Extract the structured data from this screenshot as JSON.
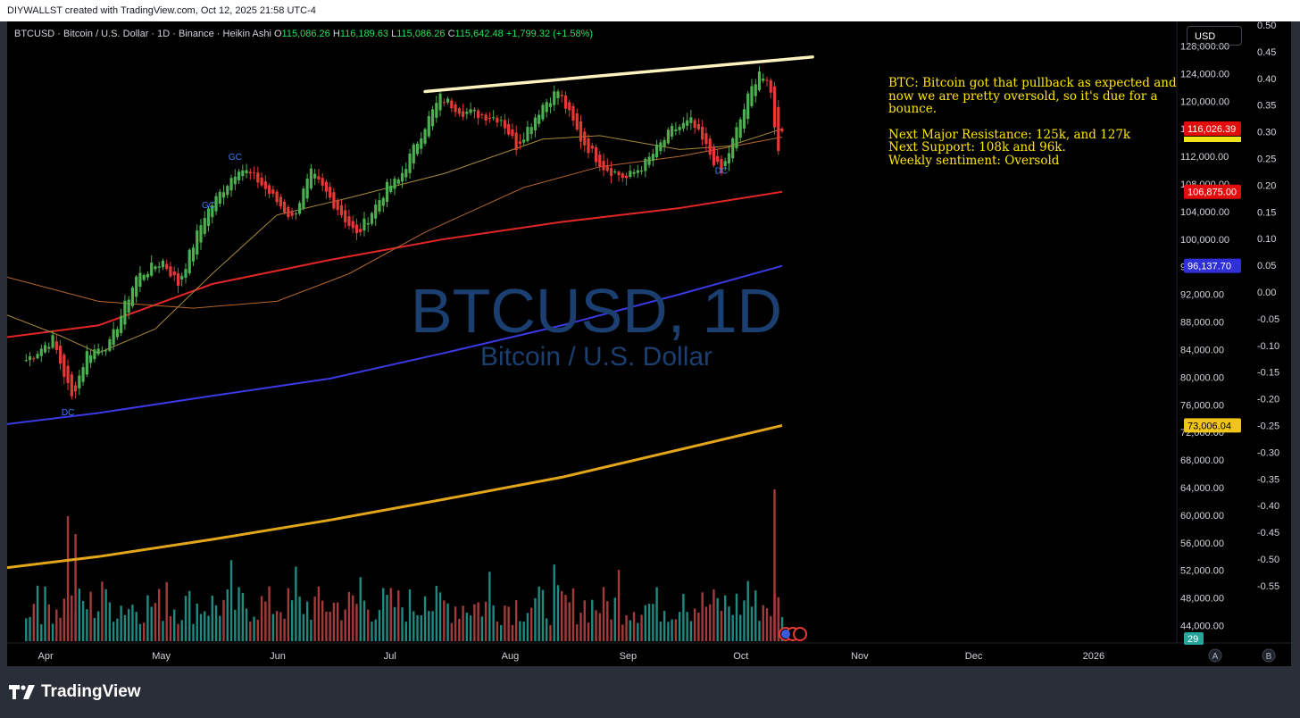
{
  "header": {
    "text": "DIYWALLST created with TradingView.com, Oct 12, 2025 21:58 UTC-4"
  },
  "legend": {
    "symbol": "BTCUSD · Bitcoin / U.S. Dollar · 1D · Binance · Heikin Ashi",
    "o_label": "O",
    "o_value": "115,086.26",
    "h_label": "H",
    "h_value": "116,189.63",
    "l_label": "L",
    "l_value": "115,086.26",
    "c_label": "C",
    "c_value": "115,642.48",
    "change": "+1,799.32 (+1.58%)"
  },
  "currency": "USD",
  "watermark": {
    "title": "BTCUSD, 1D",
    "subtitle": "Bitcoin / U.S. Dollar"
  },
  "note": {
    "para1": "BTC: Bitcoin got that pullback as expected and now we are pretty oversold, so it's due for a bounce.",
    "line1": "Next Major Resistance: 125k, and 127k",
    "line2": "Next Support: 108k and 96k.",
    "line3": "Weekly sentiment: Oversold"
  },
  "footer": {
    "brand": "TradingView"
  },
  "colors": {
    "up": "#4caf50",
    "down": "#e53935",
    "ma200": "#e12626",
    "ma_blue": "#3a3ae6",
    "ma_gold": "#e3a61a",
    "ma_tan": "#a98a3c",
    "ma_orange": "#b4652c",
    "vol_up": "#1f8a80",
    "vol_down": "#a33b3b",
    "resistance": "#fff4c0",
    "label_blue": "#3f7df2",
    "background": "#000000"
  },
  "chart_data": {
    "type": "candlestick",
    "chart_style": "Heikin Ashi",
    "x_labels": [
      "Apr",
      "May",
      "Jun",
      "Jul",
      "Aug",
      "Sep",
      "Oct",
      "Nov",
      "Dec",
      "2026"
    ],
    "y_ticks": [
      "128,000.00",
      "124,000.00",
      "120,000.00",
      "116,000.00",
      "112,000.00",
      "108,000.00",
      "104,000.00",
      "100,000.00",
      "96,000.00",
      "92,000.00",
      "88,000.00",
      "84,000.00",
      "80,000.00",
      "76,000.00",
      "72,000.00",
      "68,000.00",
      "64,000.00",
      "60,000.00",
      "56,000.00",
      "52,000.00",
      "48,000.00",
      "44,000.00"
    ],
    "y_range": [
      42000,
      130000
    ],
    "y2_ticks": [
      "0.50",
      "0.45",
      "0.40",
      "0.35",
      "0.30",
      "0.25",
      "0.20",
      "0.15",
      "0.10",
      "0.05",
      "0.00",
      "-0.05",
      "-0.10",
      "-0.15",
      "-0.20",
      "-0.25",
      "-0.30",
      "-0.35",
      "-0.40",
      "-0.45",
      "-0.50",
      "-0.55"
    ],
    "price_labels": [
      {
        "text": "116,026.39",
        "value": 116026.39,
        "color": "#e30b0b"
      },
      {
        "text": "106,875.00",
        "value": 106875,
        "color": "#e30b0b"
      },
      {
        "text": "96,137.70",
        "value": 96137.7,
        "color": "#3030d8"
      },
      {
        "text": "73,006.04",
        "value": 73006.04,
        "color": "#f0c419"
      }
    ],
    "extra_label": "29",
    "axis_buttons": [
      "A",
      "B"
    ],
    "signals": [
      {
        "text": "DC",
        "date": "2025-04-07",
        "value": 74500
      },
      {
        "text": "GC",
        "date": "2025-05-21",
        "value": 111500
      },
      {
        "text": "GC",
        "date": "2025-05-14",
        "value": 104500
      },
      {
        "text": "DC",
        "date": "2025-09-26",
        "value": 109500
      }
    ],
    "resistance_line": {
      "from": [
        "2025-07-10",
        121400
      ],
      "to": [
        "2025-10-20",
        126400
      ]
    },
    "anchors": [
      [
        "2025-03-27",
        82500
      ],
      [
        "2025-04-03",
        85500
      ],
      [
        "2025-04-08",
        77000
      ],
      [
        "2025-04-12",
        83500
      ],
      [
        "2025-04-18",
        84800
      ],
      [
        "2025-04-25",
        94500
      ],
      [
        "2025-05-02",
        96800
      ],
      [
        "2025-05-06",
        93500
      ],
      [
        "2025-05-13",
        103500
      ],
      [
        "2025-05-22",
        110500
      ],
      [
        "2025-05-27",
        108500
      ],
      [
        "2025-06-05",
        103000
      ],
      [
        "2025-06-10",
        109500
      ],
      [
        "2025-06-17",
        104500
      ],
      [
        "2025-06-22",
        100500
      ],
      [
        "2025-06-30",
        107500
      ],
      [
        "2025-07-03",
        108500
      ],
      [
        "2025-07-10",
        116500
      ],
      [
        "2025-07-14",
        120500
      ],
      [
        "2025-07-20",
        118500
      ],
      [
        "2025-07-30",
        117500
      ],
      [
        "2025-08-03",
        113500
      ],
      [
        "2025-08-10",
        119500
      ],
      [
        "2025-08-14",
        121500
      ],
      [
        "2025-08-20",
        114500
      ],
      [
        "2025-08-26",
        110500
      ],
      [
        "2025-09-01",
        108800
      ],
      [
        "2025-09-06",
        111000
      ],
      [
        "2025-09-13",
        115800
      ],
      [
        "2025-09-18",
        117000
      ],
      [
        "2025-09-26",
        109500
      ],
      [
        "2025-10-03",
        120500
      ],
      [
        "2025-10-06",
        124500
      ],
      [
        "2025-10-09",
        121000
      ],
      [
        "2025-10-11",
        112500
      ],
      [
        "2025-10-12",
        115642
      ]
    ],
    "moving_averages": [
      {
        "color": "#e12626",
        "points": [
          [
            "2025-03-22",
            85800
          ],
          [
            "2025-04-15",
            87500
          ],
          [
            "2025-05-15",
            93500
          ],
          [
            "2025-06-15",
            97000
          ],
          [
            "2025-07-15",
            100000
          ],
          [
            "2025-08-15",
            102500
          ],
          [
            "2025-09-15",
            104500
          ],
          [
            "2025-10-12",
            106875
          ]
        ]
      },
      {
        "color": "#3a3ae6",
        "points": [
          [
            "2025-03-22",
            73200
          ],
          [
            "2025-04-15",
            74800
          ],
          [
            "2025-05-15",
            77300
          ],
          [
            "2025-06-15",
            79800
          ],
          [
            "2025-07-15",
            83500
          ],
          [
            "2025-08-15",
            87500
          ],
          [
            "2025-09-15",
            92000
          ],
          [
            "2025-10-12",
            96138
          ]
        ]
      },
      {
        "color": "#e3a61a",
        "points": [
          [
            "2025-03-22",
            52400
          ],
          [
            "2025-04-15",
            54000
          ],
          [
            "2025-05-15",
            56500
          ],
          [
            "2025-06-15",
            59300
          ],
          [
            "2025-07-15",
            62300
          ],
          [
            "2025-08-15",
            65500
          ],
          [
            "2025-09-15",
            69500
          ],
          [
            "2025-10-12",
            73006
          ]
        ]
      },
      {
        "color": "#a98a3c",
        "points": [
          [
            "2025-03-22",
            89000
          ],
          [
            "2025-04-05",
            86000
          ],
          [
            "2025-04-15",
            83500
          ],
          [
            "2025-04-30",
            87000
          ],
          [
            "2025-05-15",
            95000
          ],
          [
            "2025-06-01",
            103500
          ],
          [
            "2025-06-20",
            106000
          ],
          [
            "2025-07-15",
            109500
          ],
          [
            "2025-08-10",
            114500
          ],
          [
            "2025-08-25",
            115000
          ],
          [
            "2025-09-15",
            113000
          ],
          [
            "2025-09-28",
            113500
          ],
          [
            "2025-10-12",
            116000
          ]
        ]
      },
      {
        "color": "#b4652c",
        "points": [
          [
            "2025-03-22",
            94500
          ],
          [
            "2025-04-15",
            91000
          ],
          [
            "2025-05-10",
            90000
          ],
          [
            "2025-06-01",
            91000
          ],
          [
            "2025-06-20",
            95000
          ],
          [
            "2025-07-10",
            101000
          ],
          [
            "2025-08-05",
            107500
          ],
          [
            "2025-08-25",
            110500
          ],
          [
            "2025-09-15",
            112000
          ],
          [
            "2025-10-12",
            114800
          ]
        ]
      }
    ]
  }
}
